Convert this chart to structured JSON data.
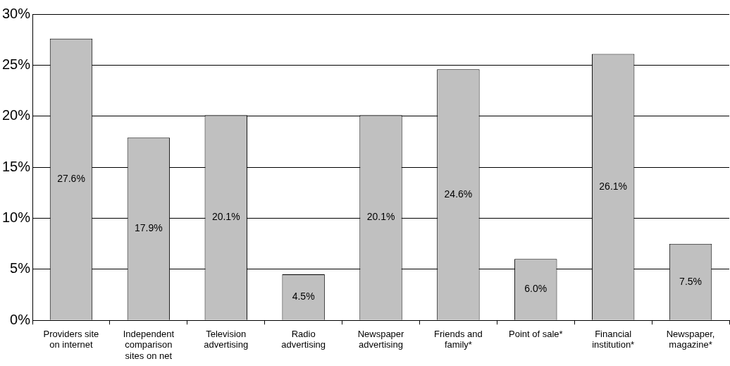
{
  "chart_data": {
    "type": "bar",
    "categories": [
      "Providers site on internet",
      "Independent comparison sites on net",
      "Television advertising",
      "Radio advertising",
      "Newspaper advertising",
      "Friends and family*",
      "Point of sale*",
      "Financial institution*",
      "Newspaper, magazine*"
    ],
    "values": [
      27.6,
      17.9,
      20.1,
      4.5,
      20.1,
      24.6,
      6.0,
      26.1,
      7.5
    ],
    "value_labels": [
      "27.6%",
      "17.9%",
      "20.1%",
      "4.5%",
      "20.1%",
      "24.6%",
      "6.0%",
      "26.1%",
      "7.5%"
    ],
    "color": "#c0c0c0",
    "ylim": [
      0,
      30
    ],
    "yticks": [
      {
        "value": 0,
        "label": "0%"
      },
      {
        "value": 5,
        "label": "5%"
      },
      {
        "value": 10,
        "label": "10%"
      },
      {
        "value": 15,
        "label": "15%"
      },
      {
        "value": 20,
        "label": "20%"
      },
      {
        "value": 25,
        "label": "25%"
      },
      {
        "value": 30,
        "label": "30%"
      }
    ],
    "grid": "y"
  }
}
